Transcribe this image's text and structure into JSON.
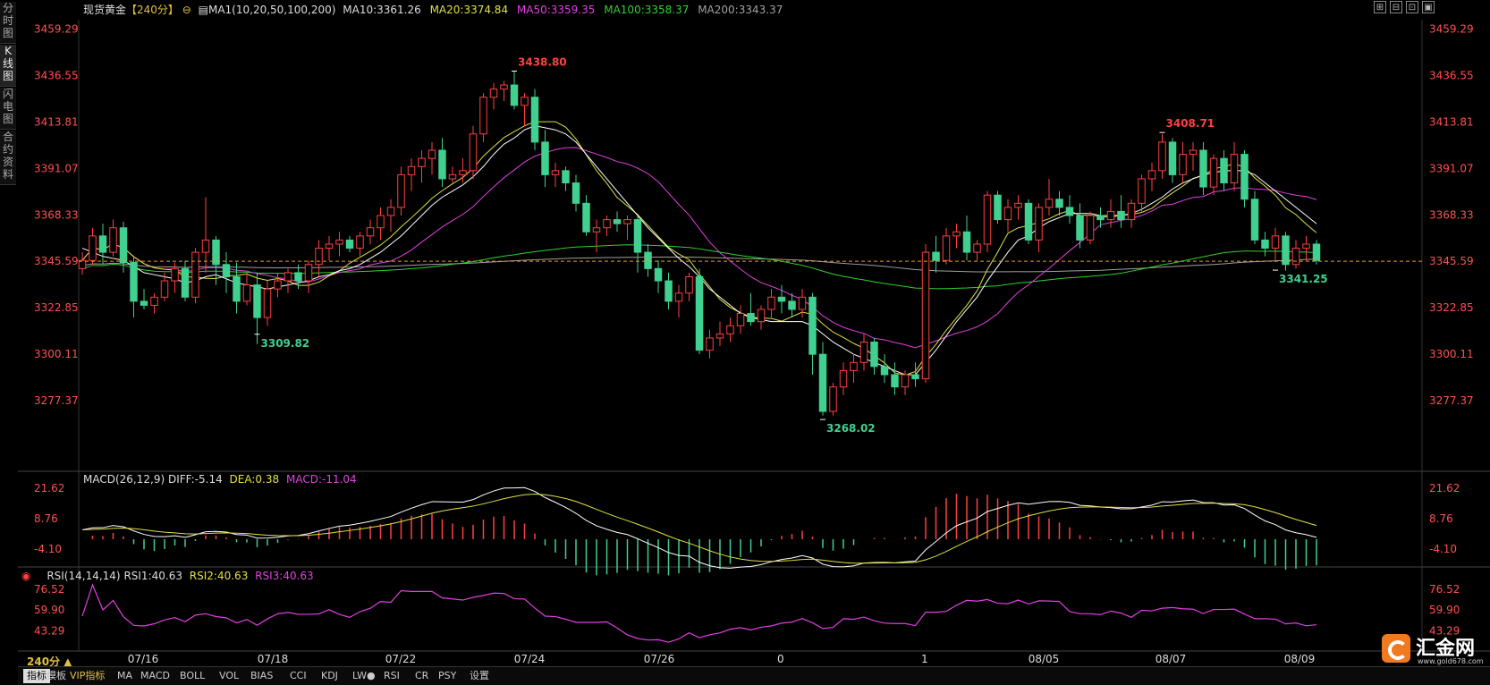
{
  "header": {
    "symbol": "现货黄金",
    "period_tag": "【240分】",
    "ma_label": "MA1(10,20,50,100,200)",
    "ma10": "MA10:3361.26",
    "ma20": "MA20:3374.84",
    "ma50": "MA50:3359.35",
    "ma100": "MA100:3358.37",
    "ma200": "MA200:3343.37"
  },
  "side_tabs": [
    {
      "label": "分时图"
    },
    {
      "label": "K线图"
    },
    {
      "label": "闪电图"
    },
    {
      "label": "合约资料"
    }
  ],
  "window_buttons": [
    "⊞",
    "⊟",
    "⊡",
    "▣"
  ],
  "colors": {
    "up": "#ff4040",
    "down": "#40d090",
    "ma10": "#ffffff",
    "ma20": "#e0e040",
    "ma50": "#e040e0",
    "ma100": "#30d030",
    "ma200": "#a0a0a0",
    "axis_text_left": "#ff5050",
    "axis_text_right": "#ff5050"
  },
  "price_axis": {
    "ticks": [
      "3459.29",
      "3436.55",
      "3413.81",
      "3391.07",
      "3368.33",
      "3345.59",
      "3322.85",
      "3300.11",
      "3277.37"
    ],
    "min": 3258,
    "max": 3464,
    "current": "3345.59",
    "current_value": 3345.59
  },
  "annotations": {
    "high1": "3438.80",
    "low1": "3309.82",
    "low2": "3268.02",
    "high2": "3408.71",
    "low3": "3341.25"
  },
  "macd": {
    "label": "MACD(26,12,9)",
    "diff": "DIFF:-5.14",
    "dea": "DEA:0.38",
    "macd": "MACD:-11.04",
    "ticks": [
      "21.62",
      "8.76",
      "-4.10"
    ]
  },
  "rsi": {
    "label": "RSI(14,14,14)",
    "rsi1": "RSI1:40.63",
    "rsi2": "RSI2:40.63",
    "rsi3": "RSI3:40.63",
    "ticks": [
      "76.52",
      "59.90",
      "43.29"
    ]
  },
  "date_axis": {
    "period": "240分 ▲",
    "dates": [
      "07/16",
      "07/18",
      "07/22",
      "07/24",
      "07/26",
      "08/05",
      "08/07",
      "08/09"
    ],
    "fragments": [
      "0",
      "1"
    ]
  },
  "bottom_tabs": [
    {
      "label": "指标",
      "active": true
    },
    {
      "label": "模板"
    },
    {
      "label": "VIP指标",
      "vip": true
    },
    {
      "label": "MA"
    },
    {
      "label": "MACD"
    },
    {
      "label": "BOLL"
    },
    {
      "label": "VOL"
    },
    {
      "label": "BIAS"
    },
    {
      "label": "CCI"
    },
    {
      "label": "KDJ"
    },
    {
      "label": "LW●"
    },
    {
      "label": "RSI"
    },
    {
      "label": "CR"
    },
    {
      "label": "PSY"
    },
    {
      "label": "设置"
    }
  ],
  "logo": {
    "name": "汇金网",
    "url": "www.gold678.com"
  },
  "chart_data": {
    "type": "candlestick",
    "candles": [
      [
        3342,
        3350,
        3339,
        3346
      ],
      [
        3346,
        3362,
        3344,
        3358
      ],
      [
        3358,
        3364,
        3344,
        3350
      ],
      [
        3350,
        3366,
        3348,
        3362
      ],
      [
        3362,
        3365,
        3340,
        3345
      ],
      [
        3345,
        3348,
        3318,
        3326
      ],
      [
        3326,
        3332,
        3322,
        3324
      ],
      [
        3324,
        3330,
        3320,
        3328
      ],
      [
        3328,
        3340,
        3326,
        3336
      ],
      [
        3336,
        3345,
        3330,
        3342
      ],
      [
        3342,
        3346,
        3326,
        3328
      ],
      [
        3328,
        3352,
        3325,
        3350
      ],
      [
        3350,
        3377,
        3340,
        3356
      ],
      [
        3356,
        3358,
        3334,
        3344
      ],
      [
        3344,
        3350,
        3330,
        3338
      ],
      [
        3338,
        3345,
        3320,
        3326
      ],
      [
        3326,
        3340,
        3324,
        3334
      ],
      [
        3334,
        3340,
        3305,
        3318
      ],
      [
        3318,
        3336,
        3314,
        3332
      ],
      [
        3332,
        3340,
        3328,
        3336
      ],
      [
        3336,
        3342,
        3330,
        3340
      ],
      [
        3340,
        3344,
        3332,
        3336
      ],
      [
        3336,
        3346,
        3330,
        3344
      ],
      [
        3344,
        3356,
        3338,
        3352
      ],
      [
        3352,
        3358,
        3346,
        3354
      ],
      [
        3354,
        3360,
        3348,
        3356
      ],
      [
        3356,
        3358,
        3350,
        3352
      ],
      [
        3352,
        3360,
        3348,
        3358
      ],
      [
        3358,
        3366,
        3354,
        3362
      ],
      [
        3362,
        3372,
        3356,
        3368
      ],
      [
        3368,
        3376,
        3360,
        3372
      ],
      [
        3372,
        3392,
        3368,
        3388
      ],
      [
        3388,
        3396,
        3380,
        3392
      ],
      [
        3392,
        3400,
        3384,
        3396
      ],
      [
        3396,
        3404,
        3388,
        3400
      ],
      [
        3400,
        3406,
        3382,
        3386
      ],
      [
        3386,
        3392,
        3384,
        3388
      ],
      [
        3388,
        3396,
        3384,
        3390
      ],
      [
        3390,
        3412,
        3386,
        3408
      ],
      [
        3408,
        3428,
        3404,
        3426
      ],
      [
        3426,
        3433,
        3420,
        3430
      ],
      [
        3430,
        3434,
        3424,
        3432
      ],
      [
        3432,
        3439,
        3420,
        3422
      ],
      [
        3422,
        3428,
        3412,
        3426
      ],
      [
        3426,
        3430,
        3400,
        3404
      ],
      [
        3404,
        3410,
        3382,
        3388
      ],
      [
        3388,
        3394,
        3382,
        3390
      ],
      [
        3390,
        3392,
        3380,
        3384
      ],
      [
        3384,
        3388,
        3370,
        3374
      ],
      [
        3374,
        3378,
        3358,
        3360
      ],
      [
        3360,
        3366,
        3350,
        3362
      ],
      [
        3362,
        3368,
        3358,
        3366
      ],
      [
        3366,
        3370,
        3360,
        3364
      ],
      [
        3364,
        3368,
        3356,
        3366
      ],
      [
        3366,
        3368,
        3340,
        3350
      ],
      [
        3350,
        3354,
        3338,
        3342
      ],
      [
        3342,
        3346,
        3330,
        3336
      ],
      [
        3336,
        3340,
        3322,
        3326
      ],
      [
        3326,
        3334,
        3318,
        3330
      ],
      [
        3330,
        3340,
        3326,
        3338
      ],
      [
        3338,
        3342,
        3300,
        3302
      ],
      [
        3302,
        3312,
        3298,
        3308
      ],
      [
        3308,
        3316,
        3304,
        3310
      ],
      [
        3310,
        3318,
        3306,
        3314
      ],
      [
        3314,
        3324,
        3310,
        3320
      ],
      [
        3320,
        3330,
        3314,
        3316
      ],
      [
        3316,
        3324,
        3312,
        3322
      ],
      [
        3322,
        3332,
        3318,
        3328
      ],
      [
        3328,
        3334,
        3320,
        3326
      ],
      [
        3326,
        3330,
        3318,
        3322
      ],
      [
        3322,
        3332,
        3318,
        3328
      ],
      [
        3328,
        3330,
        3290,
        3300
      ],
      [
        3300,
        3306,
        3270,
        3272
      ],
      [
        3272,
        3286,
        3270,
        3284
      ],
      [
        3284,
        3296,
        3280,
        3292
      ],
      [
        3292,
        3300,
        3286,
        3296
      ],
      [
        3296,
        3310,
        3292,
        3306
      ],
      [
        3306,
        3308,
        3290,
        3294
      ],
      [
        3294,
        3300,
        3286,
        3290
      ],
      [
        3290,
        3296,
        3280,
        3284
      ],
      [
        3284,
        3292,
        3280,
        3290
      ],
      [
        3290,
        3296,
        3284,
        3288
      ],
      [
        3288,
        3354,
        3286,
        3350
      ],
      [
        3350,
        3358,
        3340,
        3346
      ],
      [
        3346,
        3362,
        3344,
        3358
      ],
      [
        3358,
        3364,
        3352,
        3360
      ],
      [
        3360,
        3368,
        3346,
        3350
      ],
      [
        3350,
        3356,
        3346,
        3354
      ],
      [
        3354,
        3380,
        3350,
        3378
      ],
      [
        3378,
        3380,
        3364,
        3366
      ],
      [
        3366,
        3376,
        3360,
        3372
      ],
      [
        3372,
        3378,
        3366,
        3374
      ],
      [
        3374,
        3376,
        3354,
        3356
      ],
      [
        3356,
        3374,
        3350,
        3372
      ],
      [
        3372,
        3386,
        3368,
        3376
      ],
      [
        3376,
        3380,
        3368,
        3372
      ],
      [
        3372,
        3378,
        3364,
        3368
      ],
      [
        3368,
        3374,
        3352,
        3356
      ],
      [
        3356,
        3370,
        3354,
        3368
      ],
      [
        3368,
        3372,
        3362,
        3366
      ],
      [
        3366,
        3376,
        3362,
        3370
      ],
      [
        3370,
        3378,
        3362,
        3366
      ],
      [
        3366,
        3376,
        3362,
        3374
      ],
      [
        3374,
        3388,
        3370,
        3386
      ],
      [
        3386,
        3394,
        3380,
        3390
      ],
      [
        3390,
        3408,
        3386,
        3404
      ],
      [
        3404,
        3406,
        3384,
        3388
      ],
      [
        3388,
        3404,
        3384,
        3398
      ],
      [
        3398,
        3404,
        3390,
        3400
      ],
      [
        3400,
        3404,
        3378,
        3382
      ],
      [
        3382,
        3398,
        3378,
        3396
      ],
      [
        3396,
        3400,
        3380,
        3384
      ],
      [
        3384,
        3404,
        3380,
        3398
      ],
      [
        3398,
        3400,
        3372,
        3376
      ],
      [
        3376,
        3380,
        3354,
        3356
      ],
      [
        3356,
        3360,
        3348,
        3352
      ],
      [
        3352,
        3362,
        3346,
        3358
      ],
      [
        3358,
        3360,
        3341,
        3344
      ],
      [
        3344,
        3356,
        3342,
        3352
      ],
      [
        3352,
        3358,
        3346,
        3354
      ],
      [
        3354,
        3356,
        3344,
        3346
      ]
    ],
    "ma10": [
      3352,
      3350,
      3348,
      3347,
      3346,
      3343,
      3340,
      3339,
      3338,
      3337,
      3335,
      3336,
      3338,
      3339,
      3337,
      3335,
      3334,
      3333,
      3332,
      3333,
      3334,
      3335,
      3336,
      3338,
      3339,
      3341,
      3342,
      3344,
      3347,
      3350,
      3354,
      3358,
      3363,
      3368,
      3373,
      3377,
      3380,
      3383,
      3387,
      3392,
      3398,
      3403,
      3406,
      3410,
      3412,
      3411,
      3410,
      3408,
      3404,
      3398,
      3392,
      3386,
      3380,
      3374,
      3368,
      3362,
      3357,
      3352,
      3347,
      3343,
      3338,
      3332,
      3328,
      3324,
      3320,
      3318,
      3317,
      3316,
      3316,
      3316,
      3316,
      3314,
      3310,
      3306,
      3303,
      3300,
      3298,
      3296,
      3294,
      3292,
      3290,
      3290,
      3296,
      3302,
      3309,
      3316,
      3322,
      3328,
      3336,
      3343,
      3350,
      3356,
      3358,
      3362,
      3365,
      3367,
      3369,
      3369,
      3369,
      3368,
      3368,
      3368,
      3369,
      3371,
      3374,
      3377,
      3381,
      3384,
      3386,
      3388,
      3389,
      3390,
      3390,
      3390,
      3388,
      3384,
      3380,
      3376,
      3372,
      3368,
      3364
    ]
  }
}
